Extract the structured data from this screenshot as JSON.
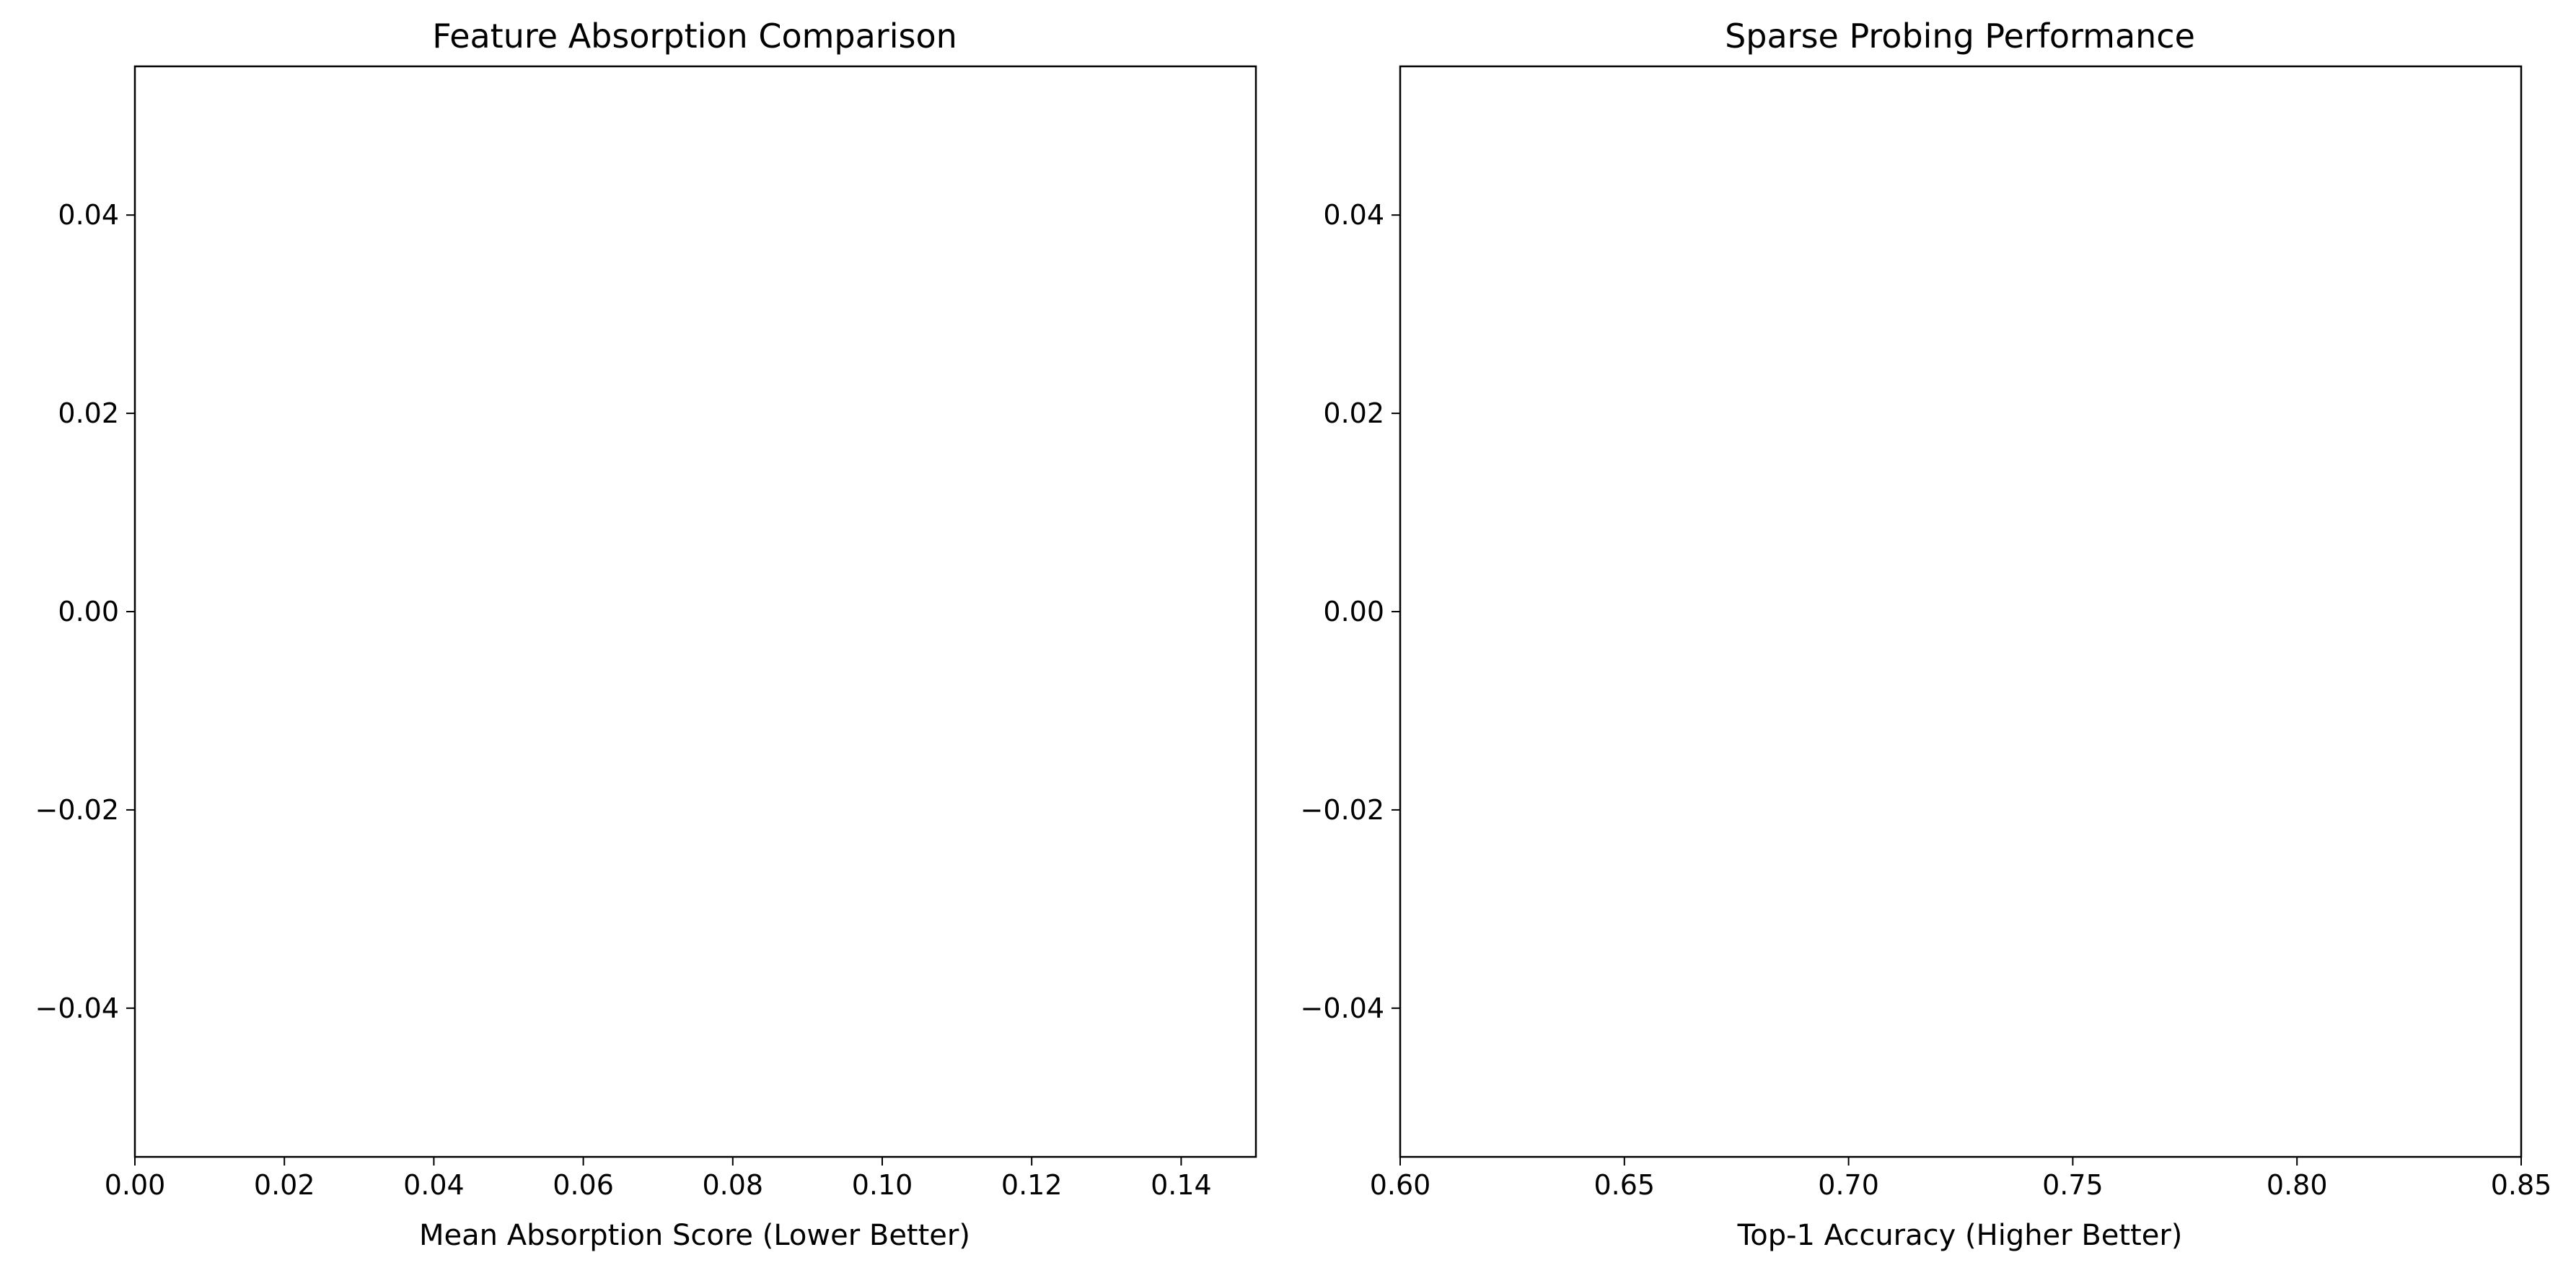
{
  "chart_data": [
    {
      "type": "bar",
      "title": "Feature Absorption Comparison",
      "xlabel": "Mean Absorption Score (Lower Better)",
      "ylabel": "",
      "xlim": [
        0.0,
        0.15
      ],
      "ylim": [
        0.055,
        -0.055
      ],
      "xticks": [
        "0.00",
        "0.02",
        "0.04",
        "0.06",
        "0.08",
        "0.10",
        "0.12",
        "0.14"
      ],
      "yticks": [
        "−0.04",
        "−0.02",
        "0.00",
        "0.02",
        "0.04"
      ],
      "categories": [],
      "values": [],
      "grid": false
    },
    {
      "type": "bar",
      "title": "Sparse Probing Performance",
      "xlabel": "Top-1 Accuracy (Higher Better)",
      "ylabel": "",
      "xlim": [
        0.6,
        0.85
      ],
      "ylim": [
        0.055,
        -0.055
      ],
      "xticks": [
        "0.60",
        "0.65",
        "0.70",
        "0.75",
        "0.80",
        "0.85"
      ],
      "yticks": [
        "−0.04",
        "−0.02",
        "0.00",
        "0.02",
        "0.04"
      ],
      "categories": [],
      "values": [],
      "grid": false
    }
  ]
}
